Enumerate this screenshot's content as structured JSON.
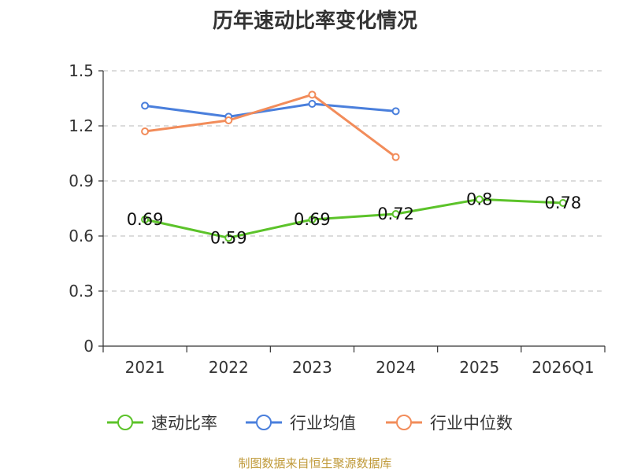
{
  "chart_data": {
    "type": "line",
    "title": "历年速动比率变化情况",
    "categories": [
      "2021",
      "2022",
      "2023",
      "2024",
      "2025",
      "2026Q1"
    ],
    "ylim": [
      0,
      1.5
    ],
    "yticks": [
      "0",
      "0.3",
      "0.6",
      "0.9",
      "1.2",
      "1.5"
    ],
    "grid": true,
    "legend_position": "bottom",
    "series": [
      {
        "name": "速动比率",
        "color": "#5cc32a",
        "values": [
          0.69,
          0.59,
          0.69,
          0.72,
          0.8,
          0.78
        ],
        "labels": [
          "0.69",
          "0.59",
          "0.69",
          "0.72",
          "0.8",
          "0.78"
        ]
      },
      {
        "name": "行业均值",
        "color": "#4a7fdc",
        "values": [
          1.31,
          1.25,
          1.32,
          1.28,
          null,
          null
        ]
      },
      {
        "name": "行业中位数",
        "color": "#f28c5a",
        "values": [
          1.17,
          1.23,
          1.37,
          1.03,
          null,
          null
        ]
      }
    ]
  },
  "footer": {
    "source": "制图数据来自恒生聚源数据库"
  }
}
